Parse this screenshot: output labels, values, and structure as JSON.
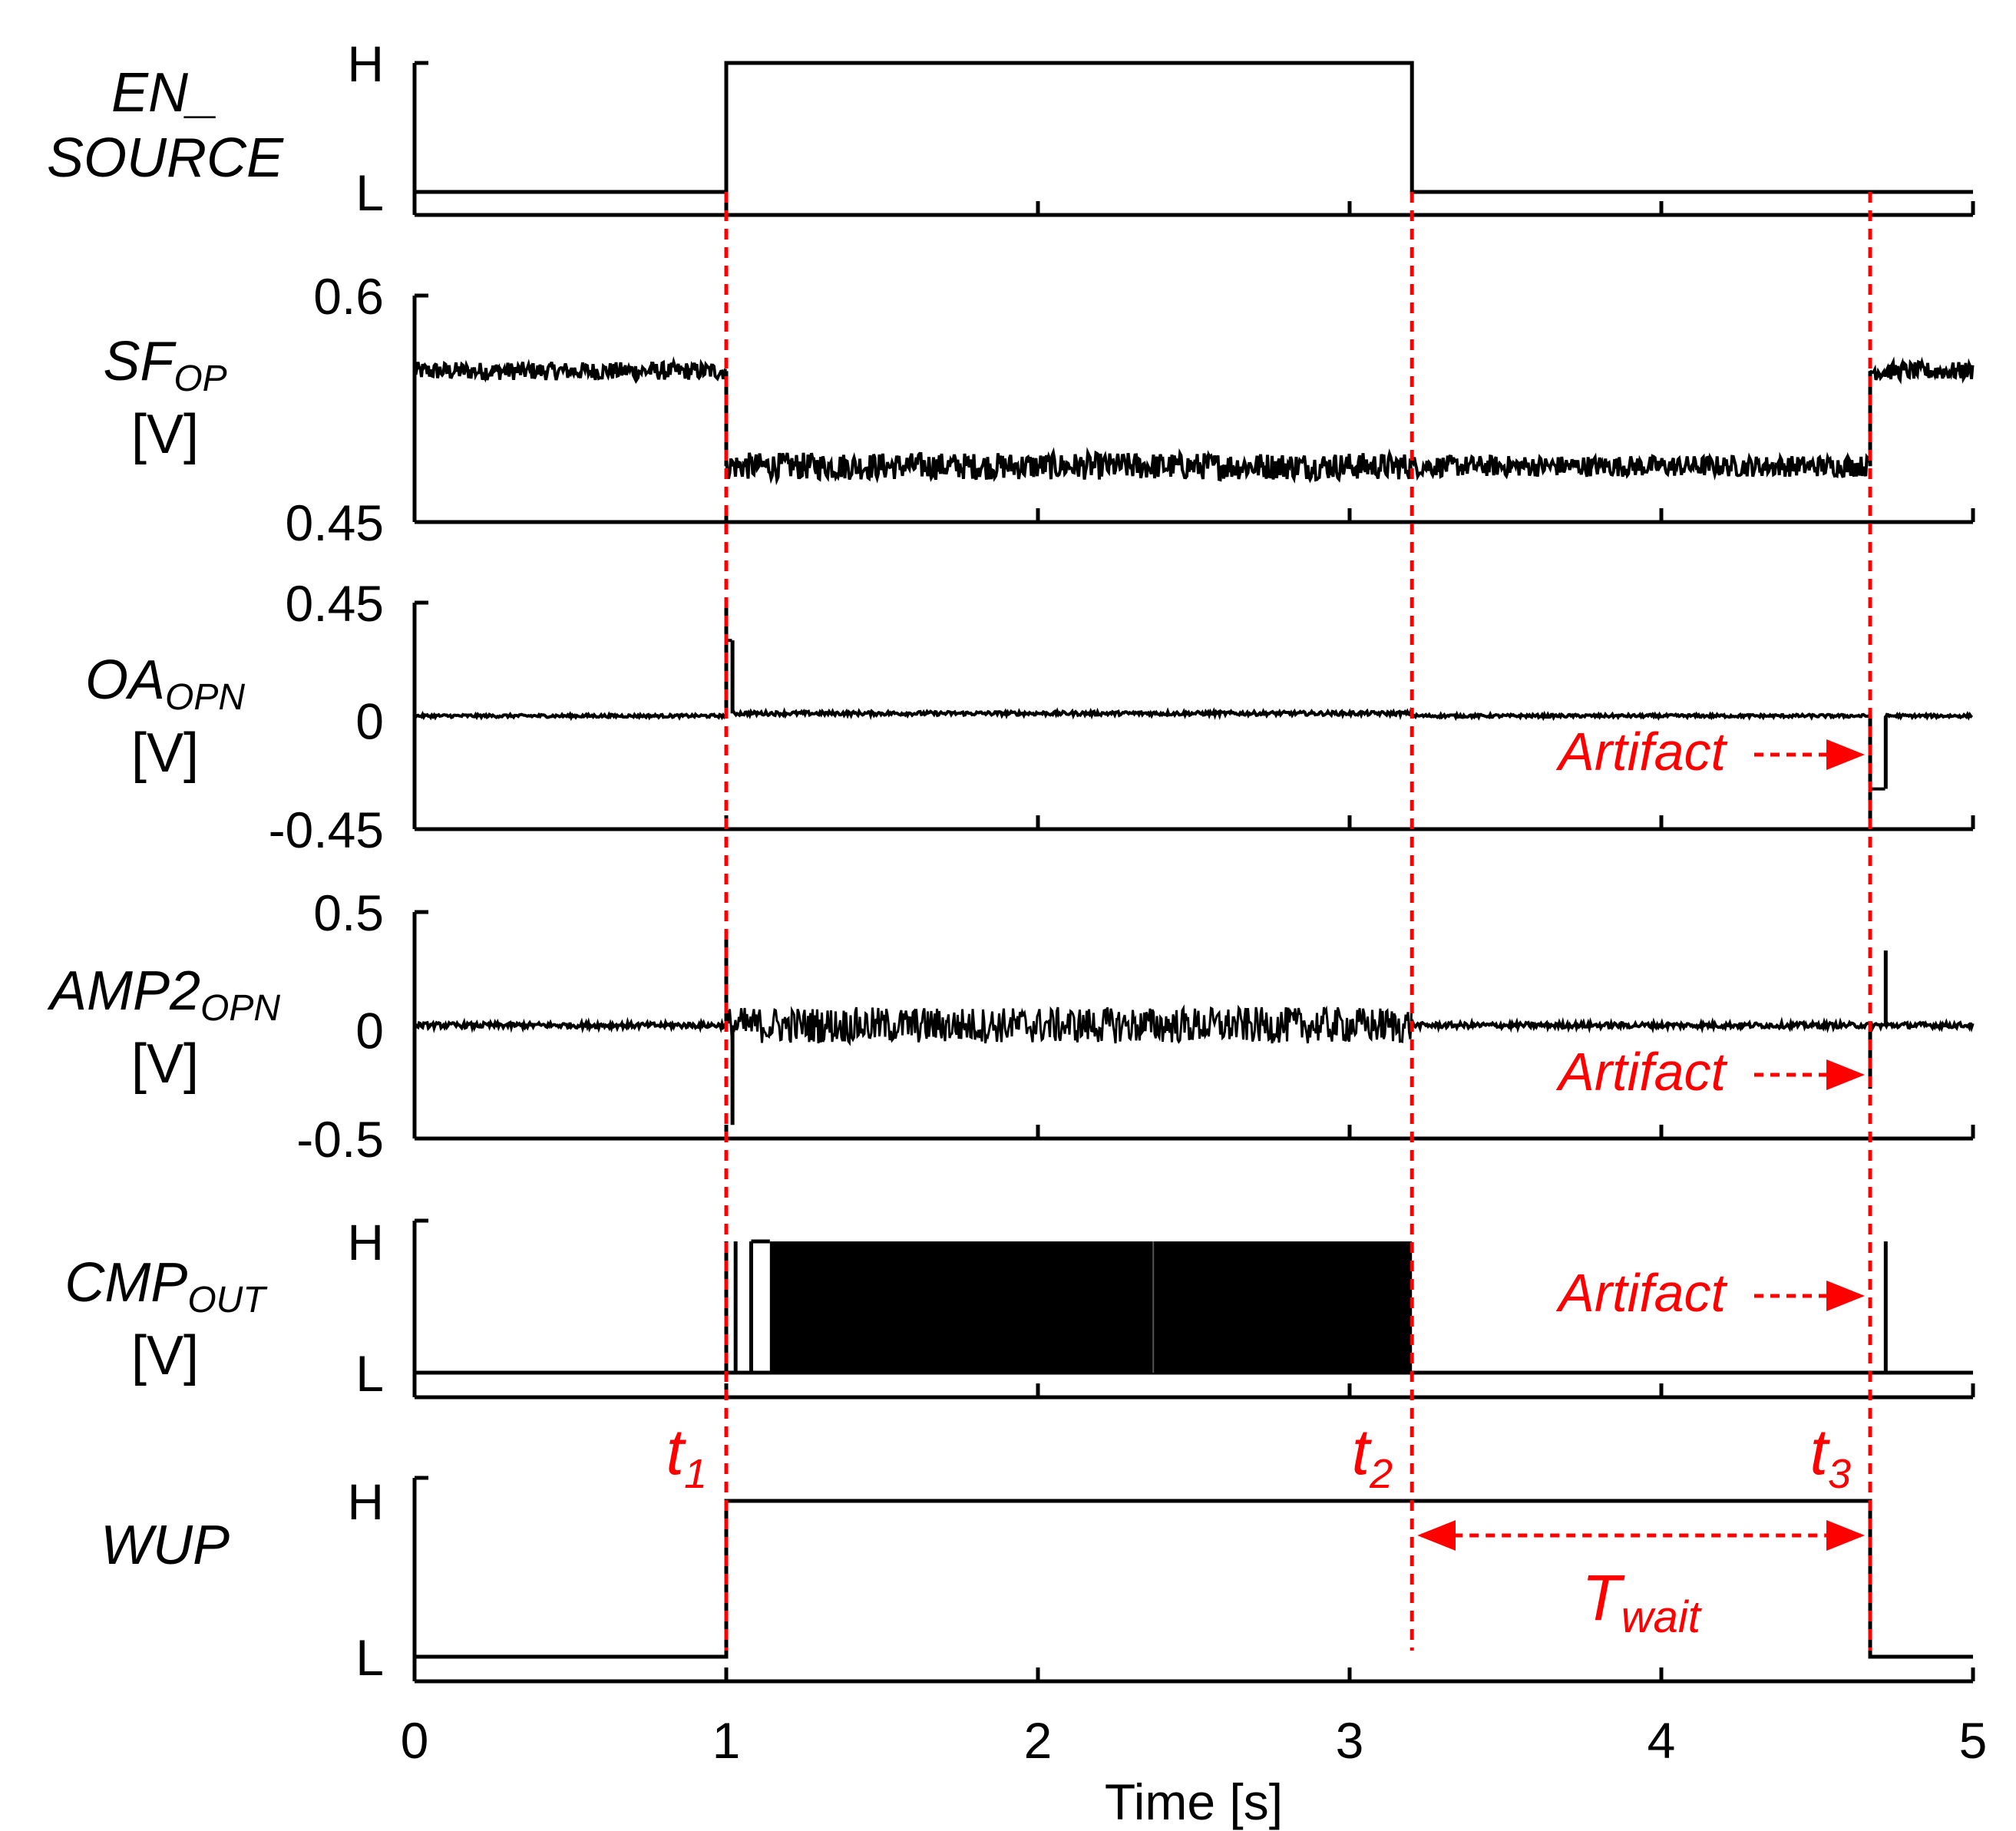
{
  "chart_data": {
    "type": "line",
    "xlabel": "Time [s]",
    "xlim": [
      0,
      5
    ],
    "x_ticks": [
      "0",
      "1",
      "2",
      "3",
      "4",
      "5"
    ],
    "grid": false,
    "legend": "none",
    "colors": {
      "trace": "#000000",
      "annotation": "#ff0000"
    },
    "panels": [
      {
        "id": "en",
        "label_lines": [
          "EN_",
          "SOURCE"
        ],
        "unit": "",
        "y_ticks": [
          "H",
          "L"
        ],
        "kind": "digital",
        "points": [
          [
            0,
            0
          ],
          [
            1.0,
            0
          ],
          [
            1.0,
            1
          ],
          [
            3.2,
            1
          ],
          [
            3.2,
            0
          ],
          [
            5,
            0
          ]
        ]
      },
      {
        "id": "sf",
        "label_main": "SF",
        "label_sub": "OP",
        "unit": "[V]",
        "ylim": [
          0.45,
          0.6
        ],
        "y_ticks": [
          "0.6",
          "0.45"
        ],
        "kind": "analog",
        "segments": [
          {
            "x": [
              0.0,
              1.0
            ],
            "y": 0.55,
            "noise": 0.006
          },
          {
            "x": [
              1.0,
              3.2
            ],
            "y": 0.487,
            "noise": 0.009
          },
          {
            "x": [
              3.2,
              4.67
            ],
            "y": 0.487,
            "noise": 0.007
          },
          {
            "x": [
              4.67,
              5.0
            ],
            "y": 0.55,
            "noise": 0.006
          }
        ]
      },
      {
        "id": "oa",
        "label_main": "OA",
        "label_sub": "OPN",
        "unit": "[V]",
        "ylim": [
          -0.45,
          0.45
        ],
        "y_ticks": [
          "0.45",
          "0",
          "-0.45"
        ],
        "kind": "analog",
        "segments": [
          {
            "x": [
              0.0,
              1.0
            ],
            "y": 0.0,
            "noise": 0.006
          },
          {
            "x": [
              1.0,
              1.02
            ],
            "y": 0.3,
            "noise": 0.0
          },
          {
            "x": [
              1.02,
              3.2
            ],
            "y": 0.01,
            "noise": 0.008
          },
          {
            "x": [
              3.2,
              4.67
            ],
            "y": 0.0,
            "noise": 0.006
          },
          {
            "x": [
              4.67,
              4.72
            ],
            "y": -0.29,
            "noise": 0.0
          },
          {
            "x": [
              4.72,
              5.0
            ],
            "y": 0.0,
            "noise": 0.006
          }
        ],
        "spikes": [
          [
            1.0,
            0.45
          ],
          [
            4.67,
            -0.41
          ]
        ]
      },
      {
        "id": "amp2",
        "label_main": "AMP2",
        "label_sub": "OPN",
        "unit": "[V]",
        "ylim": [
          -0.5,
          0.5
        ],
        "y_ticks": [
          "0.5",
          "0",
          "-0.5"
        ],
        "kind": "analog",
        "segments": [
          {
            "x": [
              0.0,
              1.0
            ],
            "y": 0.0,
            "noise": 0.012
          },
          {
            "x": [
              1.0,
              3.2
            ],
            "y": 0.0,
            "noise": 0.08
          },
          {
            "x": [
              3.2,
              5.0
            ],
            "y": 0.0,
            "noise": 0.012
          }
        ],
        "spikes": [
          [
            1.0,
            0.42
          ],
          [
            1.02,
            -0.44
          ],
          [
            4.67,
            -0.28
          ],
          [
            4.72,
            0.33
          ]
        ]
      },
      {
        "id": "cmp",
        "label_main": "CMP",
        "label_sub": "OUT",
        "unit": "[V]",
        "y_ticks": [
          "H",
          "L"
        ],
        "kind": "digital-burst",
        "burst": [
          1.14,
          3.2
        ],
        "pulses": [
          1.0,
          1.03,
          1.08,
          4.72
        ]
      },
      {
        "id": "wup",
        "label_main": "WUP",
        "unit": "",
        "y_ticks": [
          "H",
          "L"
        ],
        "kind": "digital",
        "points": [
          [
            0,
            0
          ],
          [
            1.0,
            0
          ],
          [
            1.0,
            1
          ],
          [
            4.67,
            1
          ],
          [
            4.67,
            0
          ],
          [
            5,
            0
          ]
        ]
      }
    ],
    "markers": [
      {
        "x": 1.0,
        "label": "t",
        "sub": "1"
      },
      {
        "x": 3.2,
        "label": "t",
        "sub": "2"
      },
      {
        "x": 4.67,
        "label": "t",
        "sub": "3"
      }
    ],
    "annotations": [
      {
        "panel": "oa",
        "text": "Artifact",
        "arrow_to_x": 4.67
      },
      {
        "panel": "amp2",
        "text": "Artifact",
        "arrow_to_x": 4.67
      },
      {
        "panel": "cmp",
        "text": "Artifact",
        "arrow_to_x": 4.67
      }
    ],
    "interval": {
      "from_x": 3.2,
      "to_x": 4.67,
      "label": "T",
      "sub": "wait"
    }
  }
}
